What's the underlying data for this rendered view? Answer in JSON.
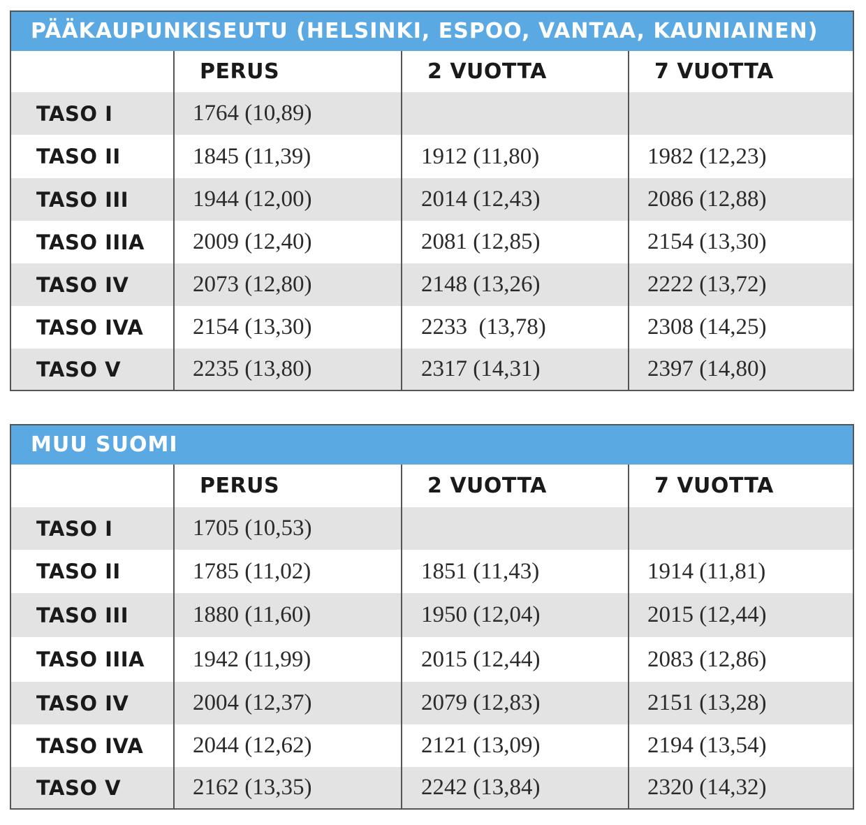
{
  "tables": [
    {
      "title": "PÄÄKAUPUNKISEUTU (HELSINKI, ESPOO, VANTAA, KAUNIAINEN)",
      "headers": [
        "",
        "PERUS",
        "2 VUOTTA",
        "7 VUOTTA"
      ],
      "rows": [
        {
          "label": "TASO I",
          "perus": "1764 (10,89)",
          "v2": "",
          "v7": ""
        },
        {
          "label": "TASO II",
          "perus": "1845 (11,39)",
          "v2": "1912 (11,80)",
          "v7": "1982 (12,23)"
        },
        {
          "label": "TASO III",
          "perus": "1944 (12,00)",
          "v2": "2014 (12,43)",
          "v7": "2086 (12,88)"
        },
        {
          "label": "TASO IIIA",
          "perus": "2009 (12,40)",
          "v2": "2081 (12,85)",
          "v7": "2154 (13,30)"
        },
        {
          "label": "TASO IV",
          "perus": "2073 (12,80)",
          "v2": "2148 (13,26)",
          "v7": "2222 (13,72)"
        },
        {
          "label": "TASO IVA",
          "perus": "2154 (13,30)",
          "v2": "2233  (13,78)",
          "v7": "2308 (14,25)"
        },
        {
          "label": "TASO V",
          "perus": "2235 (13,80)",
          "v2": "2317 (14,31)",
          "v7": "2397 (14,80)"
        }
      ]
    },
    {
      "title": "MUU SUOMI",
      "headers": [
        "",
        "PERUS",
        "2 VUOTTA",
        "7 VUOTTA"
      ],
      "rows": [
        {
          "label": "TASO I",
          "perus": "1705 (10,53)",
          "v2": "",
          "v7": ""
        },
        {
          "label": "TASO II",
          "perus": "1785 (11,02)",
          "v2": "1851 (11,43)",
          "v7": "1914 (11,81)"
        },
        {
          "label": "TASO III",
          "perus": "1880 (11,60)",
          "v2": "1950 (12,04)",
          "v7": "2015 (12,44)"
        },
        {
          "label": "TASO IIIA",
          "perus": "1942 (11,99)",
          "v2": "2015 (12,44)",
          "v7": "2083 (12,86)"
        },
        {
          "label": "TASO IV",
          "perus": "2004 (12,37)",
          "v2": "2079 (12,83)",
          "v7": "2151 (13,28)"
        },
        {
          "label": "TASO IVA",
          "perus": "2044 (12,62)",
          "v2": "2121 (13,09)",
          "v7": "2194 (13,54)"
        },
        {
          "label": "TASO V",
          "perus": "2162 (13,35)",
          "v2": "2242 (13,84)",
          "v7": "2320 (14,32)"
        }
      ]
    }
  ],
  "colors": {
    "title_bar": "#5ba9e2",
    "row_shade": "#e3e3e3",
    "border": "#555555"
  }
}
